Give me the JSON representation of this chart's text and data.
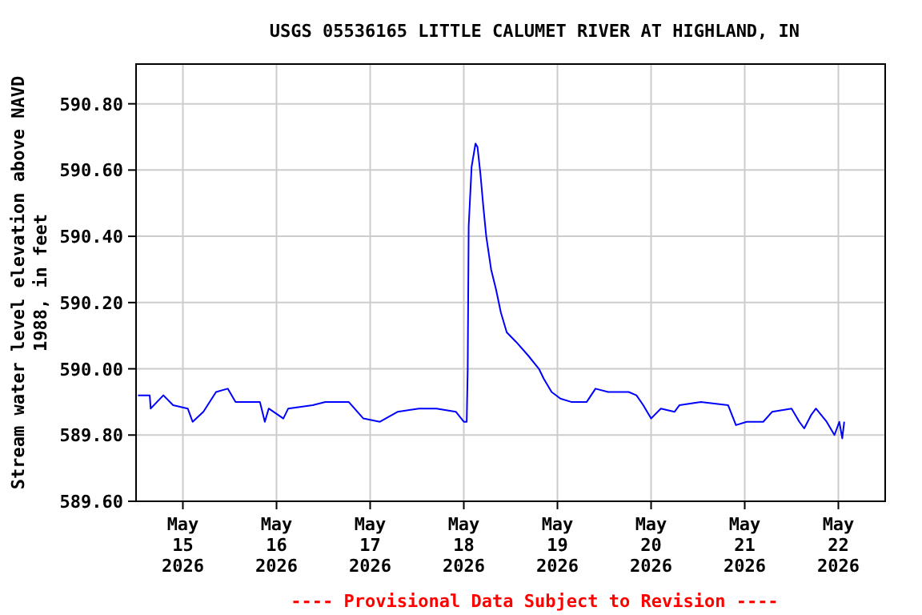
{
  "chart_data": {
    "type": "line",
    "title": "USGS 05536165 LITTLE CALUMET RIVER AT HIGHLAND, IN",
    "ylabel": "Stream water level elevation above NAVD\n1988, in feet",
    "annotations": [
      "---- Provisional Data Subject to Revision ----"
    ],
    "x": [
      "2026-05-14T12:30",
      "2026-05-14T15:30",
      "2026-05-14T15:45",
      "2026-05-14T19:00",
      "2026-05-14T21:30",
      "2026-05-15T01:15",
      "2026-05-15T02:30",
      "2026-05-15T05:15",
      "2026-05-15T08:30",
      "2026-05-15T11:30",
      "2026-05-15T13:30",
      "2026-05-15T19:45",
      "2026-05-15T21:00",
      "2026-05-15T22:00",
      "2026-05-16T01:45",
      "2026-05-16T03:00",
      "2026-05-16T09:15",
      "2026-05-16T12:30",
      "2026-05-16T18:30",
      "2026-05-16T22:15",
      "2026-05-17T02:30",
      "2026-05-17T07:00",
      "2026-05-17T12:30",
      "2026-05-17T17:00",
      "2026-05-17T22:00",
      "2026-05-18T00:00",
      "2026-05-18T00:45",
      "2026-05-18T01:00",
      "2026-05-18T01:15",
      "2026-05-18T02:00",
      "2026-05-18T03:00",
      "2026-05-18T03:30",
      "2026-05-18T04:15",
      "2026-05-18T05:00",
      "2026-05-18T05:45",
      "2026-05-18T07:00",
      "2026-05-18T08:15",
      "2026-05-18T09:30",
      "2026-05-18T11:00",
      "2026-05-18T13:30",
      "2026-05-18T16:30",
      "2026-05-18T19:15",
      "2026-05-18T20:30",
      "2026-05-18T22:30",
      "2026-05-19T00:45",
      "2026-05-19T03:30",
      "2026-05-19T07:30",
      "2026-05-19T09:45",
      "2026-05-19T13:00",
      "2026-05-19T18:15",
      "2026-05-19T20:15",
      "2026-05-19T22:00",
      "2026-05-20T00:00",
      "2026-05-20T02:30",
      "2026-05-20T06:00",
      "2026-05-20T07:15",
      "2026-05-20T12:45",
      "2026-05-20T19:45",
      "2026-05-20T21:45",
      "2026-05-21T00:30",
      "2026-05-21T04:45",
      "2026-05-21T07:00",
      "2026-05-21T12:00",
      "2026-05-21T14:00",
      "2026-05-21T15:15",
      "2026-05-21T17:00",
      "2026-05-21T18:15",
      "2026-05-21T21:00",
      "2026-05-21T23:00",
      "2026-05-22T00:15",
      "2026-05-22T01:00",
      "2026-05-22T01:30"
    ],
    "series": [
      {
        "color": "#0000ff",
        "values": [
          589.92,
          589.92,
          589.88,
          589.92,
          589.89,
          589.88,
          589.84,
          589.87,
          589.93,
          589.94,
          589.9,
          589.9,
          589.84,
          589.88,
          589.85,
          589.88,
          589.89,
          589.9,
          589.9,
          589.85,
          589.84,
          589.87,
          589.88,
          589.88,
          589.87,
          589.84,
          589.84,
          590.0,
          590.43,
          590.61,
          590.68,
          590.67,
          590.59,
          590.49,
          590.4,
          590.3,
          590.24,
          590.17,
          590.11,
          590.08,
          590.04,
          590.0,
          589.97,
          589.93,
          589.91,
          589.9,
          589.9,
          589.94,
          589.93,
          589.93,
          589.92,
          589.89,
          589.85,
          589.88,
          589.87,
          589.89,
          589.9,
          589.89,
          589.83,
          589.84,
          589.84,
          589.87,
          589.88,
          589.84,
          589.82,
          589.86,
          589.88,
          589.84,
          589.8,
          589.84,
          589.79,
          589.84
        ]
      }
    ],
    "xlim": [
      "2026-05-14T12:00",
      "2026-05-22T12:00"
    ],
    "xticks": [
      {
        "value": "2026-05-15",
        "label": "May\n15\n2026"
      },
      {
        "value": "2026-05-16",
        "label": "May\n16\n2026"
      },
      {
        "value": "2026-05-17",
        "label": "May\n17\n2026"
      },
      {
        "value": "2026-05-18",
        "label": "May\n18\n2026"
      },
      {
        "value": "2026-05-19",
        "label": "May\n19\n2026"
      },
      {
        "value": "2026-05-20",
        "label": "May\n20\n2026"
      },
      {
        "value": "2026-05-21",
        "label": "May\n21\n2026"
      },
      {
        "value": "2026-05-22",
        "label": "May\n22\n2026"
      }
    ],
    "ylim": [
      589.6,
      590.92
    ],
    "yticks": [
      {
        "value": 589.6,
        "label": "589.60"
      },
      {
        "value": 589.8,
        "label": "589.80"
      },
      {
        "value": 590.0,
        "label": "590.00"
      },
      {
        "value": 590.2,
        "label": "590.20"
      },
      {
        "value": 590.4,
        "label": "590.40"
      },
      {
        "value": 590.6,
        "label": "590.60"
      },
      {
        "value": 590.8,
        "label": "590.80"
      }
    ],
    "grid": true,
    "line_style": "solid",
    "marker": "none"
  }
}
